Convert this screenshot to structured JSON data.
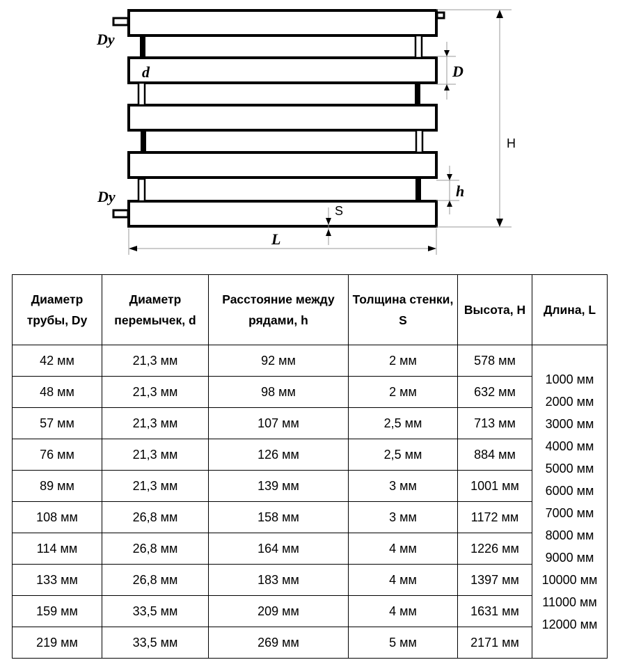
{
  "diagram": {
    "labels": {
      "dy_top": "Dy",
      "dy_bottom": "Dy",
      "d": "d",
      "D": "D",
      "H": "H",
      "h": "h",
      "S": "S",
      "L": "L"
    }
  },
  "table": {
    "headers": [
      "Диаметр трубы, Dy",
      "Диаметр перемычек, d",
      "Расстояние между рядами, h",
      "Толщина стенки, S",
      "Высота, H",
      "Длина, L"
    ],
    "rows": [
      [
        "42 мм",
        "21,3 мм",
        "92 мм",
        "2 мм",
        "578 мм"
      ],
      [
        "48 мм",
        "21,3 мм",
        "98 мм",
        "2 мм",
        "632 мм"
      ],
      [
        "57 мм",
        "21,3 мм",
        "107 мм",
        "2,5 мм",
        "713 мм"
      ],
      [
        "76 мм",
        "21,3 мм",
        "126 мм",
        "2,5 мм",
        "884 мм"
      ],
      [
        "89 мм",
        "21,3 мм",
        "139 мм",
        "3 мм",
        "1001 мм"
      ],
      [
        "108 мм",
        "26,8 мм",
        "158 мм",
        "3 мм",
        "1172 мм"
      ],
      [
        "114 мм",
        "26,8 мм",
        "164 мм",
        "4 мм",
        "1226 мм"
      ],
      [
        "133 мм",
        "26,8 мм",
        "183 мм",
        "4 мм",
        "1397 мм"
      ],
      [
        "159 мм",
        "33,5 мм",
        "209 мм",
        "4 мм",
        "1631 мм"
      ],
      [
        "219 мм",
        "33,5 мм",
        "269 мм",
        "5 мм",
        "2171 мм"
      ]
    ],
    "lengths": [
      "1000 мм",
      "2000 мм",
      "3000 мм",
      "4000 мм",
      "5000 мм",
      "6000 мм",
      "7000 мм",
      "8000 мм",
      "9000 мм",
      "10000 мм",
      "11000 мм",
      "12000 мм"
    ]
  }
}
